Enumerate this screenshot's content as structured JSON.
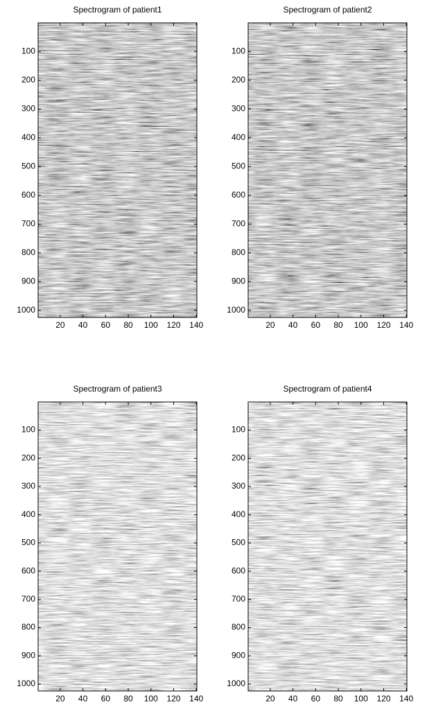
{
  "chart_data": [
    {
      "type": "heatmap",
      "title": "Spectrogram of patient1",
      "colormap": "gray",
      "y_inverted": true,
      "xlim": [
        0.5,
        140.5
      ],
      "ylim": [
        0.5,
        1024.5
      ],
      "xticks": [
        20,
        40,
        60,
        80,
        100,
        120,
        140
      ],
      "yticks": [
        100,
        200,
        300,
        400,
        500,
        600,
        700,
        800,
        900,
        1000
      ]
    },
    {
      "type": "heatmap",
      "title": "Spectrogram of patient2",
      "colormap": "gray",
      "y_inverted": true,
      "xlim": [
        0.5,
        140.5
      ],
      "ylim": [
        0.5,
        1024.5
      ],
      "xticks": [
        20,
        40,
        60,
        80,
        100,
        120,
        140
      ],
      "yticks": [
        100,
        200,
        300,
        400,
        500,
        600,
        700,
        800,
        900,
        1000
      ]
    },
    {
      "type": "heatmap",
      "title": "Spectrogram of patient3",
      "colormap": "gray",
      "y_inverted": true,
      "xlim": [
        0.5,
        140.5
      ],
      "ylim": [
        0.5,
        1024.5
      ],
      "xticks": [
        20,
        40,
        60,
        80,
        100,
        120,
        140
      ],
      "yticks": [
        100,
        200,
        300,
        400,
        500,
        600,
        700,
        800,
        900,
        1000
      ]
    },
    {
      "type": "heatmap",
      "title": "Spectrogram of patient4",
      "colormap": "gray",
      "y_inverted": true,
      "xlim": [
        0.5,
        140.5
      ],
      "ylim": [
        0.5,
        1024.5
      ],
      "xticks": [
        20,
        40,
        60,
        80,
        100,
        120,
        140
      ],
      "yticks": [
        100,
        200,
        300,
        400,
        500,
        600,
        700,
        800,
        900,
        1000
      ]
    }
  ]
}
